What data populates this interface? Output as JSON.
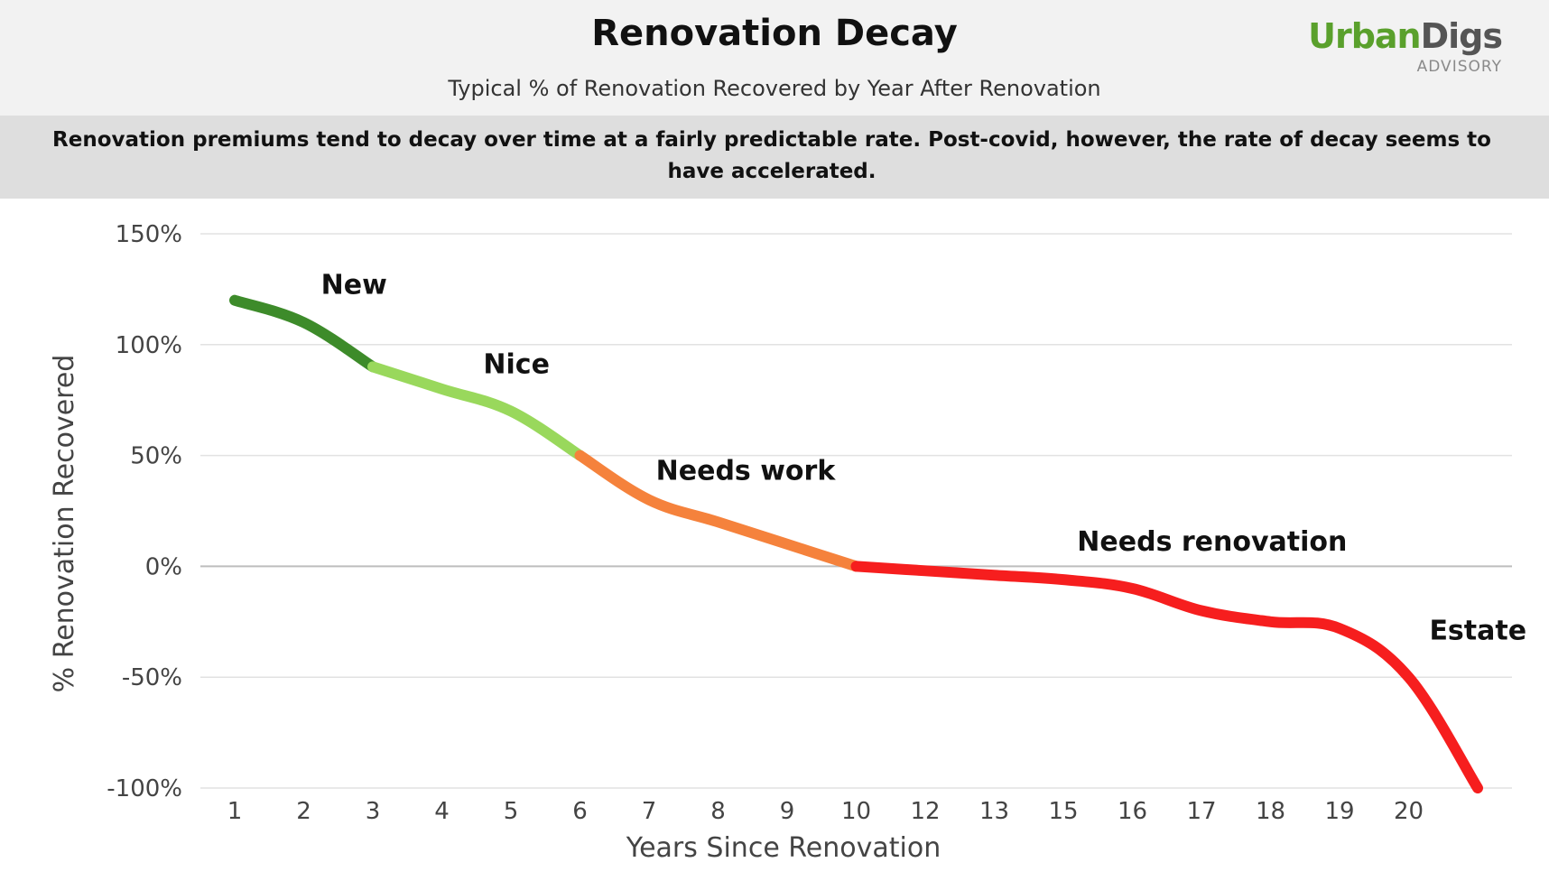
{
  "header": {
    "title": "Renovation Decay",
    "subtitle": "Typical % of Renovation Recovered by Year After Renovation",
    "summary": "Renovation premiums tend to decay over time at a fairly predictable rate. Post-covid, however, the rate of decay seems to have accelerated."
  },
  "logo": {
    "part1": "Urban",
    "part2": "Digs",
    "sub": "ADVISORY"
  },
  "chart_data": {
    "type": "line",
    "title": "Renovation Decay",
    "subtitle": "Typical % of Renovation Recovered by Year After Renovation",
    "xlabel": "Years Since Renovation",
    "ylabel": "% Renovation Recovered",
    "categories": [
      "1",
      "2",
      "3",
      "4",
      "5",
      "6",
      "7",
      "8",
      "9",
      "10",
      "12",
      "13",
      "15",
      "16",
      "17",
      "18",
      "19",
      "20"
    ],
    "y_ticks": [
      "150%",
      "100%",
      "50%",
      "0%",
      "-50%",
      "-100%"
    ],
    "ylim": [
      -100,
      150
    ],
    "grid": true,
    "legend": "none",
    "series": [
      {
        "color": "#3d8b2a",
        "x": [
          1,
          2,
          3
        ],
        "y": [
          120,
          110,
          90
        ]
      },
      {
        "color": "#99d85c",
        "x": [
          3,
          4,
          5,
          6
        ],
        "y": [
          90,
          80,
          70,
          50
        ]
      },
      {
        "color": "#f5823c",
        "x": [
          6,
          7,
          8,
          9,
          10
        ],
        "y": [
          50,
          30,
          20,
          10,
          0
        ]
      },
      {
        "color": "#f61e1e",
        "x": [
          10,
          12,
          13,
          15,
          16,
          17,
          18,
          19,
          20,
          21
        ],
        "y": [
          0,
          -2,
          -4,
          -6,
          -10,
          -20,
          -25,
          -28,
          -50,
          -100
        ]
      }
    ],
    "annotations": [
      {
        "text": "New",
        "x": 2.25,
        "y": 123
      },
      {
        "text": "Nice",
        "x": 4.6,
        "y": 87
      },
      {
        "text": "Needs work",
        "x": 7.1,
        "y": 39
      },
      {
        "text": "Needs renovation",
        "x": 15.2,
        "y": 7
      },
      {
        "text": "Estate",
        "x": 20.3,
        "y": -33
      }
    ]
  }
}
